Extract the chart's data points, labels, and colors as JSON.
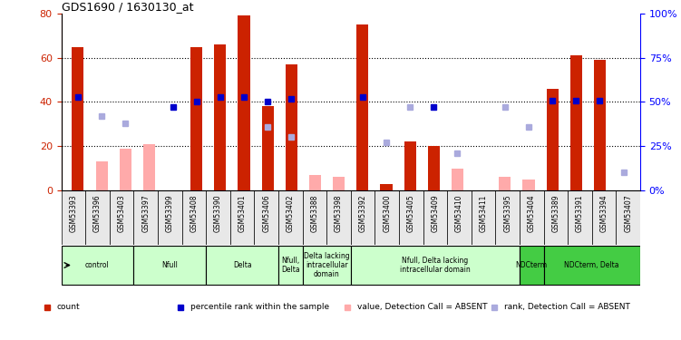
{
  "title": "GDS1690 / 1630130_at",
  "samples": [
    "GSM53393",
    "GSM53396",
    "GSM53403",
    "GSM53397",
    "GSM53399",
    "GSM53408",
    "GSM53390",
    "GSM53401",
    "GSM53406",
    "GSM53402",
    "GSM53388",
    "GSM53398",
    "GSM53392",
    "GSM53400",
    "GSM53405",
    "GSM53409",
    "GSM53410",
    "GSM53411",
    "GSM53395",
    "GSM53404",
    "GSM53389",
    "GSM53391",
    "GSM53394",
    "GSM53407"
  ],
  "red_bars": [
    65,
    0,
    0,
    0,
    0,
    65,
    66,
    79,
    38,
    57,
    0,
    0,
    75,
    3,
    22,
    20,
    0,
    0,
    0,
    0,
    46,
    61,
    59,
    0
  ],
  "pink_bars": [
    0,
    13,
    19,
    21,
    0,
    0,
    0,
    0,
    0,
    0,
    7,
    6,
    0,
    0,
    0,
    0,
    10,
    0,
    6,
    5,
    0,
    0,
    0,
    0
  ],
  "blue_squares": [
    53,
    0,
    0,
    0,
    47,
    50,
    53,
    53,
    50,
    52,
    0,
    0,
    53,
    0,
    0,
    47,
    0,
    0,
    0,
    0,
    51,
    51,
    51,
    0
  ],
  "blue_square_present": [
    true,
    false,
    false,
    false,
    true,
    true,
    true,
    true,
    true,
    true,
    false,
    false,
    true,
    false,
    false,
    true,
    false,
    false,
    false,
    false,
    true,
    true,
    true,
    false
  ],
  "lightblue_squares": [
    0,
    42,
    38,
    0,
    0,
    0,
    0,
    0,
    36,
    30,
    0,
    0,
    0,
    27,
    47,
    0,
    21,
    0,
    47,
    36,
    0,
    0,
    0,
    10
  ],
  "lightblue_present": [
    false,
    true,
    true,
    false,
    false,
    false,
    false,
    false,
    true,
    true,
    false,
    false,
    false,
    true,
    true,
    false,
    true,
    false,
    true,
    true,
    false,
    false,
    false,
    true
  ],
  "groups": [
    {
      "label": "control",
      "start": 0,
      "end": 3,
      "color": "#ccffcc"
    },
    {
      "label": "Nfull",
      "start": 3,
      "end": 6,
      "color": "#ccffcc"
    },
    {
      "label": "Delta",
      "start": 6,
      "end": 9,
      "color": "#ccffcc"
    },
    {
      "label": "Nfull,\nDelta",
      "start": 9,
      "end": 10,
      "color": "#ccffcc"
    },
    {
      "label": "Delta lacking\nintracellular\ndomain",
      "start": 10,
      "end": 12,
      "color": "#ccffcc"
    },
    {
      "label": "Nfull, Delta lacking\nintracellular domain",
      "start": 12,
      "end": 19,
      "color": "#ccffcc"
    },
    {
      "label": "NDCterm",
      "start": 19,
      "end": 20,
      "color": "#44cc44"
    },
    {
      "label": "NDCterm, Delta",
      "start": 20,
      "end": 24,
      "color": "#44cc44"
    }
  ],
  "ylim_left": [
    0,
    80
  ],
  "ylim_right": [
    0,
    100
  ],
  "left_yticks": [
    0,
    20,
    40,
    60,
    80
  ],
  "right_yticks": [
    0,
    25,
    50,
    75,
    100
  ],
  "right_yticklabels": [
    "0%",
    "25%",
    "50%",
    "75%",
    "100%"
  ],
  "bar_width": 0.5,
  "red_color": "#cc2200",
  "pink_color": "#ffaaaa",
  "blue_color": "#0000cc",
  "lightblue_color": "#aaaadd",
  "grid_color": "black",
  "legend_items": [
    {
      "color": "#cc2200",
      "marker": "s",
      "label": "count"
    },
    {
      "color": "#0000cc",
      "marker": "s",
      "label": "percentile rank within the sample"
    },
    {
      "color": "#ffaaaa",
      "marker": "s",
      "label": "value, Detection Call = ABSENT"
    },
    {
      "color": "#aaaadd",
      "marker": "s",
      "label": "rank, Detection Call = ABSENT"
    }
  ]
}
